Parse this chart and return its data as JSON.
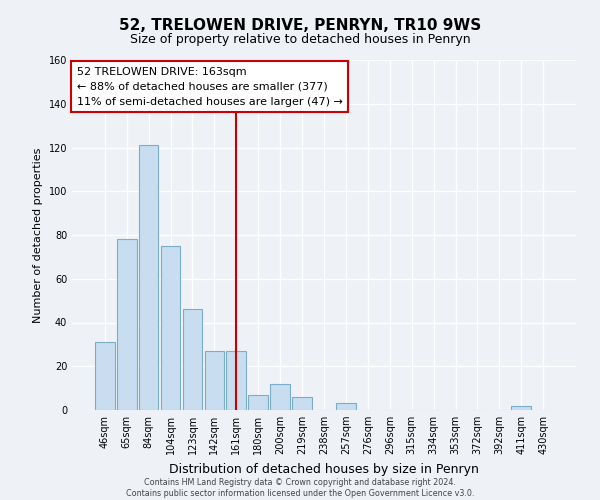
{
  "title": "52, TRELOWEN DRIVE, PENRYN, TR10 9WS",
  "subtitle": "Size of property relative to detached houses in Penryn",
  "xlabel": "Distribution of detached houses by size in Penryn",
  "ylabel": "Number of detached properties",
  "bin_labels": [
    "46sqm",
    "65sqm",
    "84sqm",
    "104sqm",
    "123sqm",
    "142sqm",
    "161sqm",
    "180sqm",
    "200sqm",
    "219sqm",
    "238sqm",
    "257sqm",
    "276sqm",
    "296sqm",
    "315sqm",
    "334sqm",
    "353sqm",
    "372sqm",
    "392sqm",
    "411sqm",
    "430sqm"
  ],
  "bar_values": [
    31,
    78,
    121,
    75,
    46,
    27,
    27,
    7,
    12,
    6,
    0,
    3,
    0,
    0,
    0,
    0,
    0,
    0,
    0,
    2,
    0
  ],
  "bar_color": "#c8ddef",
  "bar_edge_color": "#7aaec8",
  "vline_index": 6,
  "vline_color": "#cc0000",
  "annotation_line1": "52 TRELOWEN DRIVE: 163sqm",
  "annotation_line2": "← 88% of detached houses are smaller (377)",
  "annotation_line3": "11% of semi-detached houses are larger (47) →",
  "annotation_box_color": "#ffffff",
  "annotation_box_edge": "#cc0000",
  "ylim": [
    0,
    160
  ],
  "yticks": [
    0,
    20,
    40,
    60,
    80,
    100,
    120,
    140,
    160
  ],
  "footer1": "Contains HM Land Registry data © Crown copyright and database right 2024.",
  "footer2": "Contains public sector information licensed under the Open Government Licence v3.0.",
  "background_color": "#eef2f7",
  "title_fontsize": 11,
  "subtitle_fontsize": 9,
  "ylabel_fontsize": 8,
  "xlabel_fontsize": 9,
  "tick_fontsize": 7,
  "annotation_fontsize": 8
}
